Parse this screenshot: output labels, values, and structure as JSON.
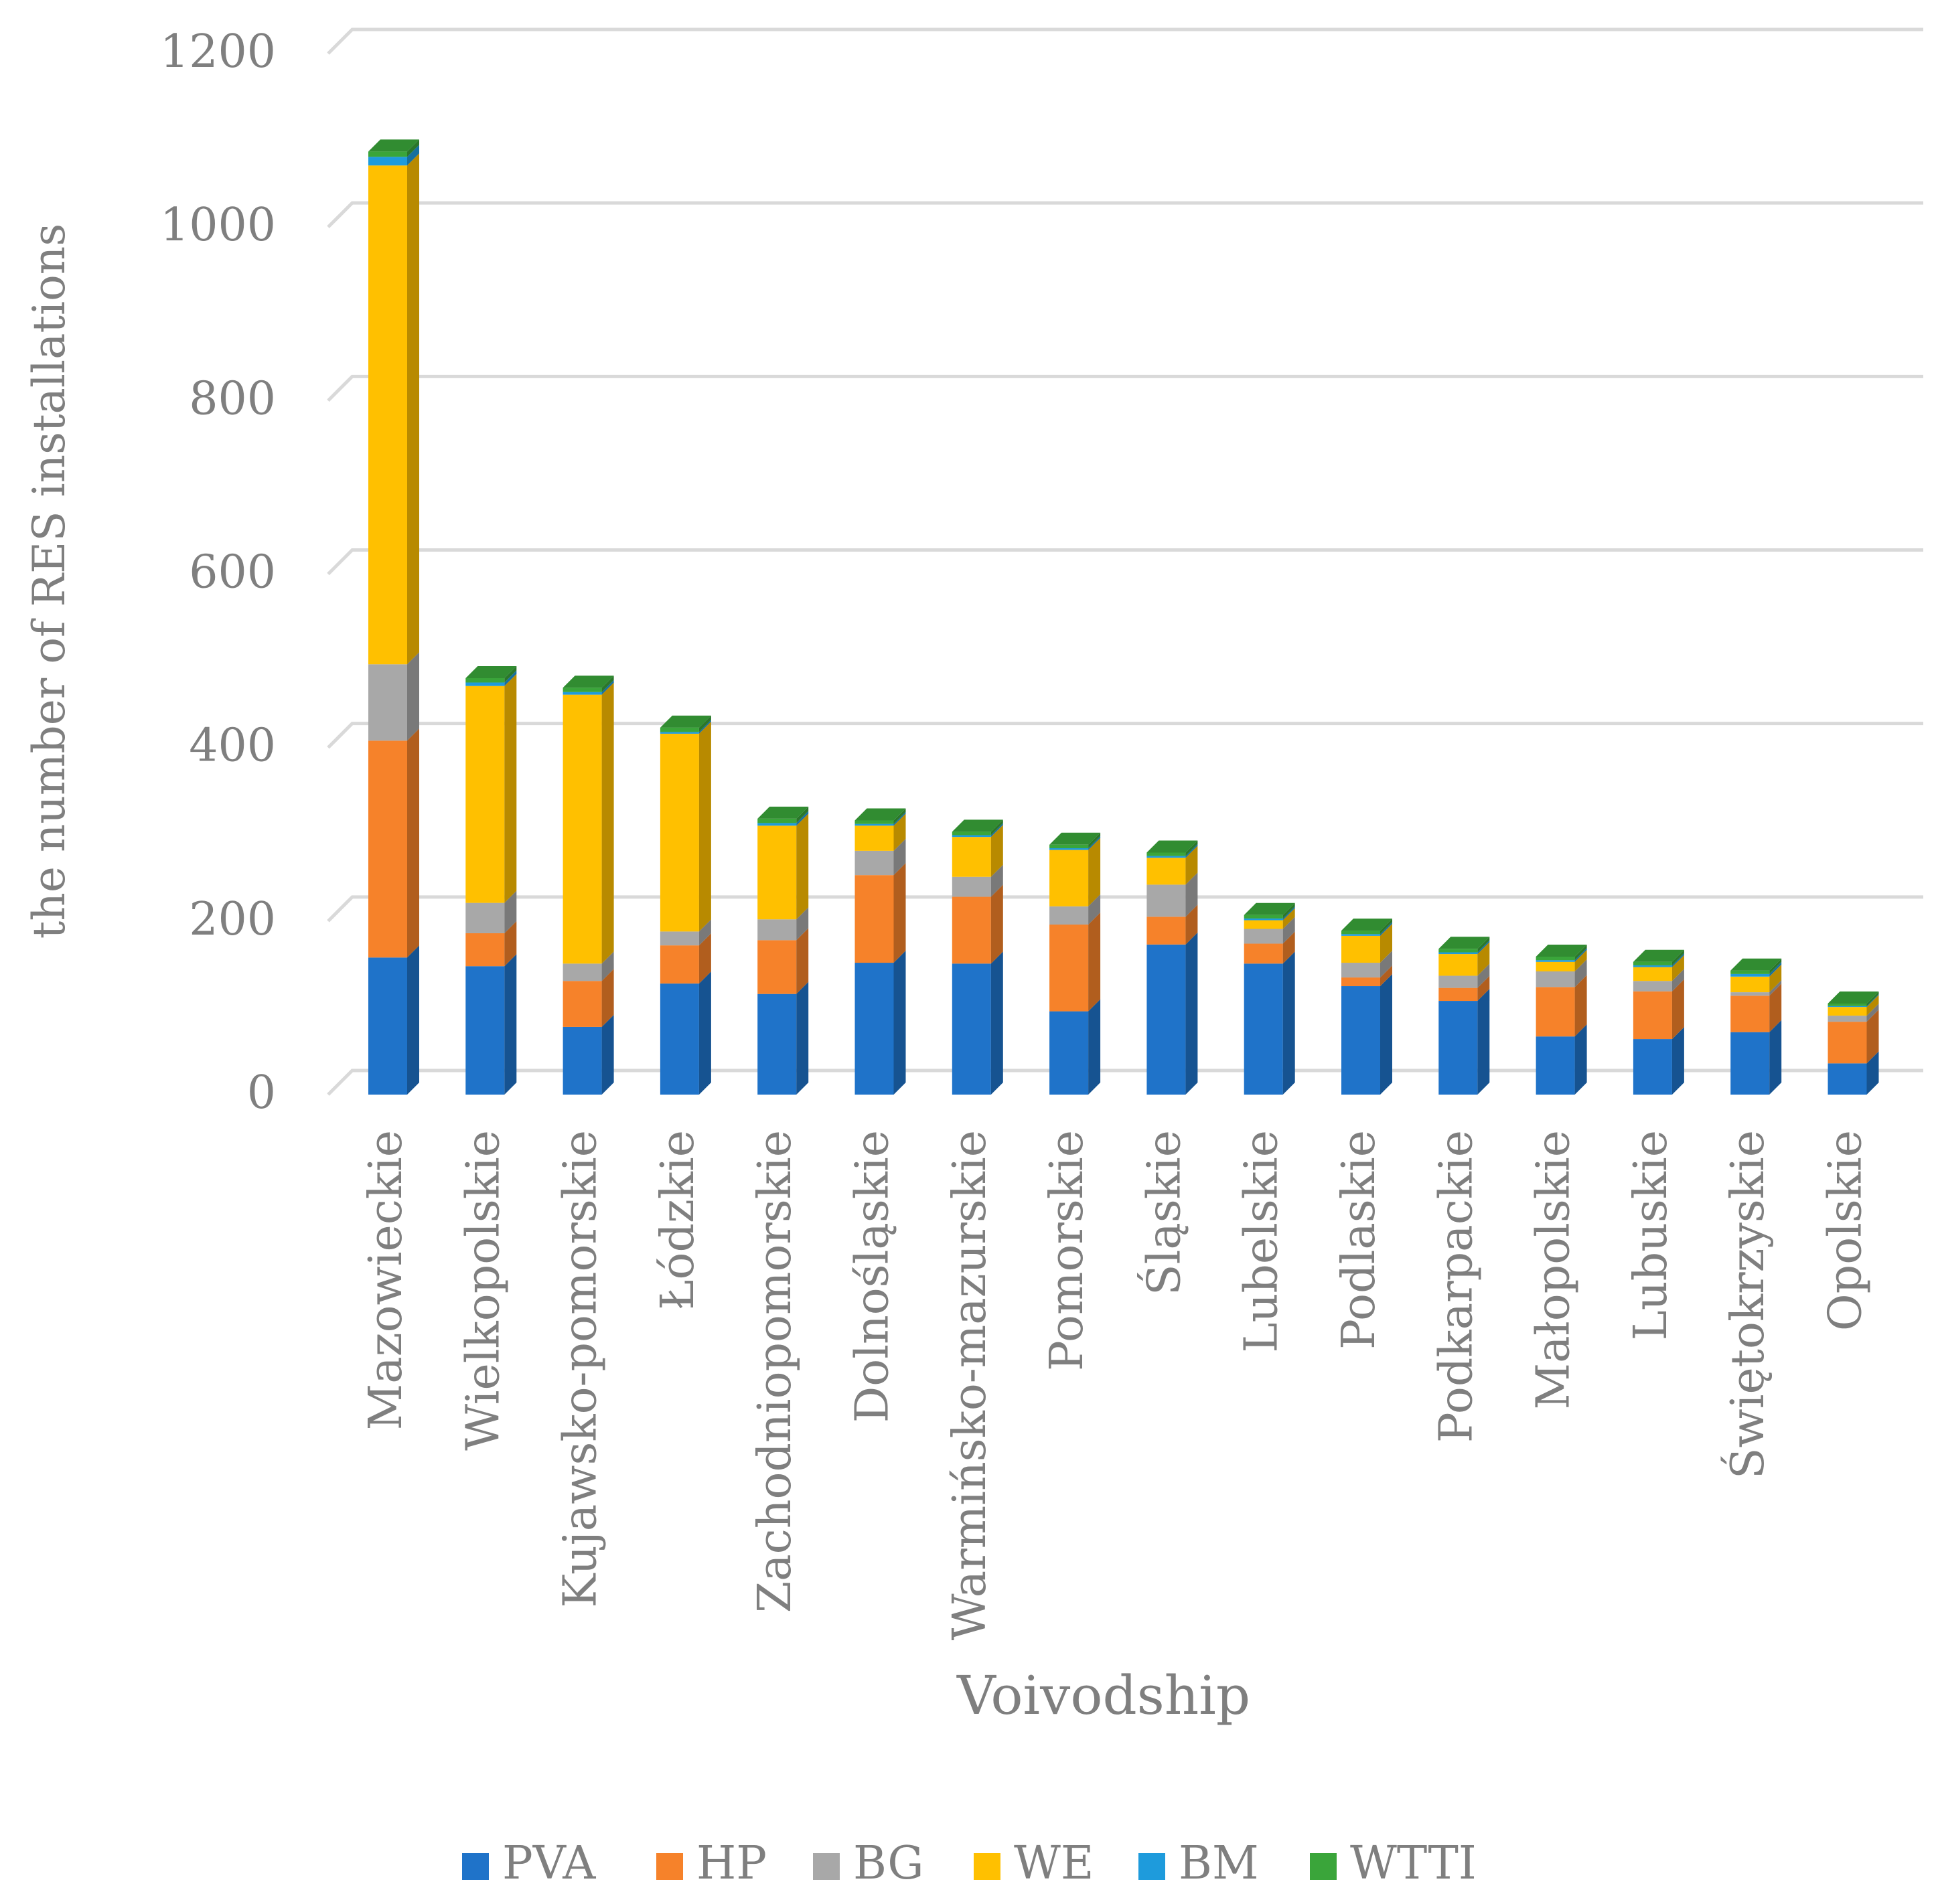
{
  "chart_data": {
    "type": "bar",
    "stacked": true,
    "style": "3d-column",
    "title": "",
    "xlabel": "Voivodship",
    "ylabel": "the number of RES installations",
    "ylim": [
      0,
      1200
    ],
    "yticks": [
      0,
      200,
      400,
      600,
      800,
      1000,
      1200
    ],
    "ytick_labels": [
      "0",
      "200",
      "400",
      "600",
      "800",
      "1000",
      "1200"
    ],
    "grid": true,
    "legend_position": "bottom",
    "categories": [
      "Mazowieckie",
      "Wielkopolskie",
      "Kujawsko-pomorskie",
      "Łódzkie",
      "Zachodniopomorskie",
      "Dolnośląskie",
      "Warmińsko-mazurskie",
      "Pomorskie",
      "Śląskie",
      "Lubelskie",
      "Podlaskie",
      "Podkarpackie",
      "Małopolskie",
      "Lubuskie",
      "Świętokrzyskie",
      "Opolskie"
    ],
    "series": [
      {
        "name": "PVA",
        "color": "#1f73c9",
        "values": [
          158,
          148,
          78,
          128,
          116,
          152,
          151,
          96,
          173,
          151,
          125,
          108,
          67,
          64,
          72,
          36
        ]
      },
      {
        "name": "HP",
        "color": "#f6822a",
        "values": [
          250,
          38,
          53,
          44,
          62,
          101,
          77,
          100,
          32,
          23,
          10,
          15,
          57,
          55,
          42,
          48
        ]
      },
      {
        "name": "BG",
        "color": "#a8a8a8",
        "values": [
          88,
          35,
          20,
          16,
          24,
          28,
          23,
          21,
          37,
          17,
          17,
          14,
          18,
          12,
          4,
          7
        ]
      },
      {
        "name": "WE",
        "color": "#ffc000",
        "values": [
          575,
          250,
          310,
          228,
          108,
          29,
          46,
          65,
          31,
          10,
          31,
          25,
          11,
          16,
          18,
          10
        ]
      },
      {
        "name": "BM",
        "color": "#1e9bdc",
        "values": [
          10,
          4,
          3,
          2,
          3,
          2,
          2,
          2,
          2,
          2,
          2,
          2,
          2,
          2,
          3,
          1
        ]
      },
      {
        "name": "WTTI",
        "color": "#3aa53a",
        "values": [
          6,
          5,
          5,
          5,
          5,
          4,
          4,
          4,
          4,
          4,
          4,
          4,
          4,
          4,
          4,
          3
        ]
      }
    ]
  }
}
